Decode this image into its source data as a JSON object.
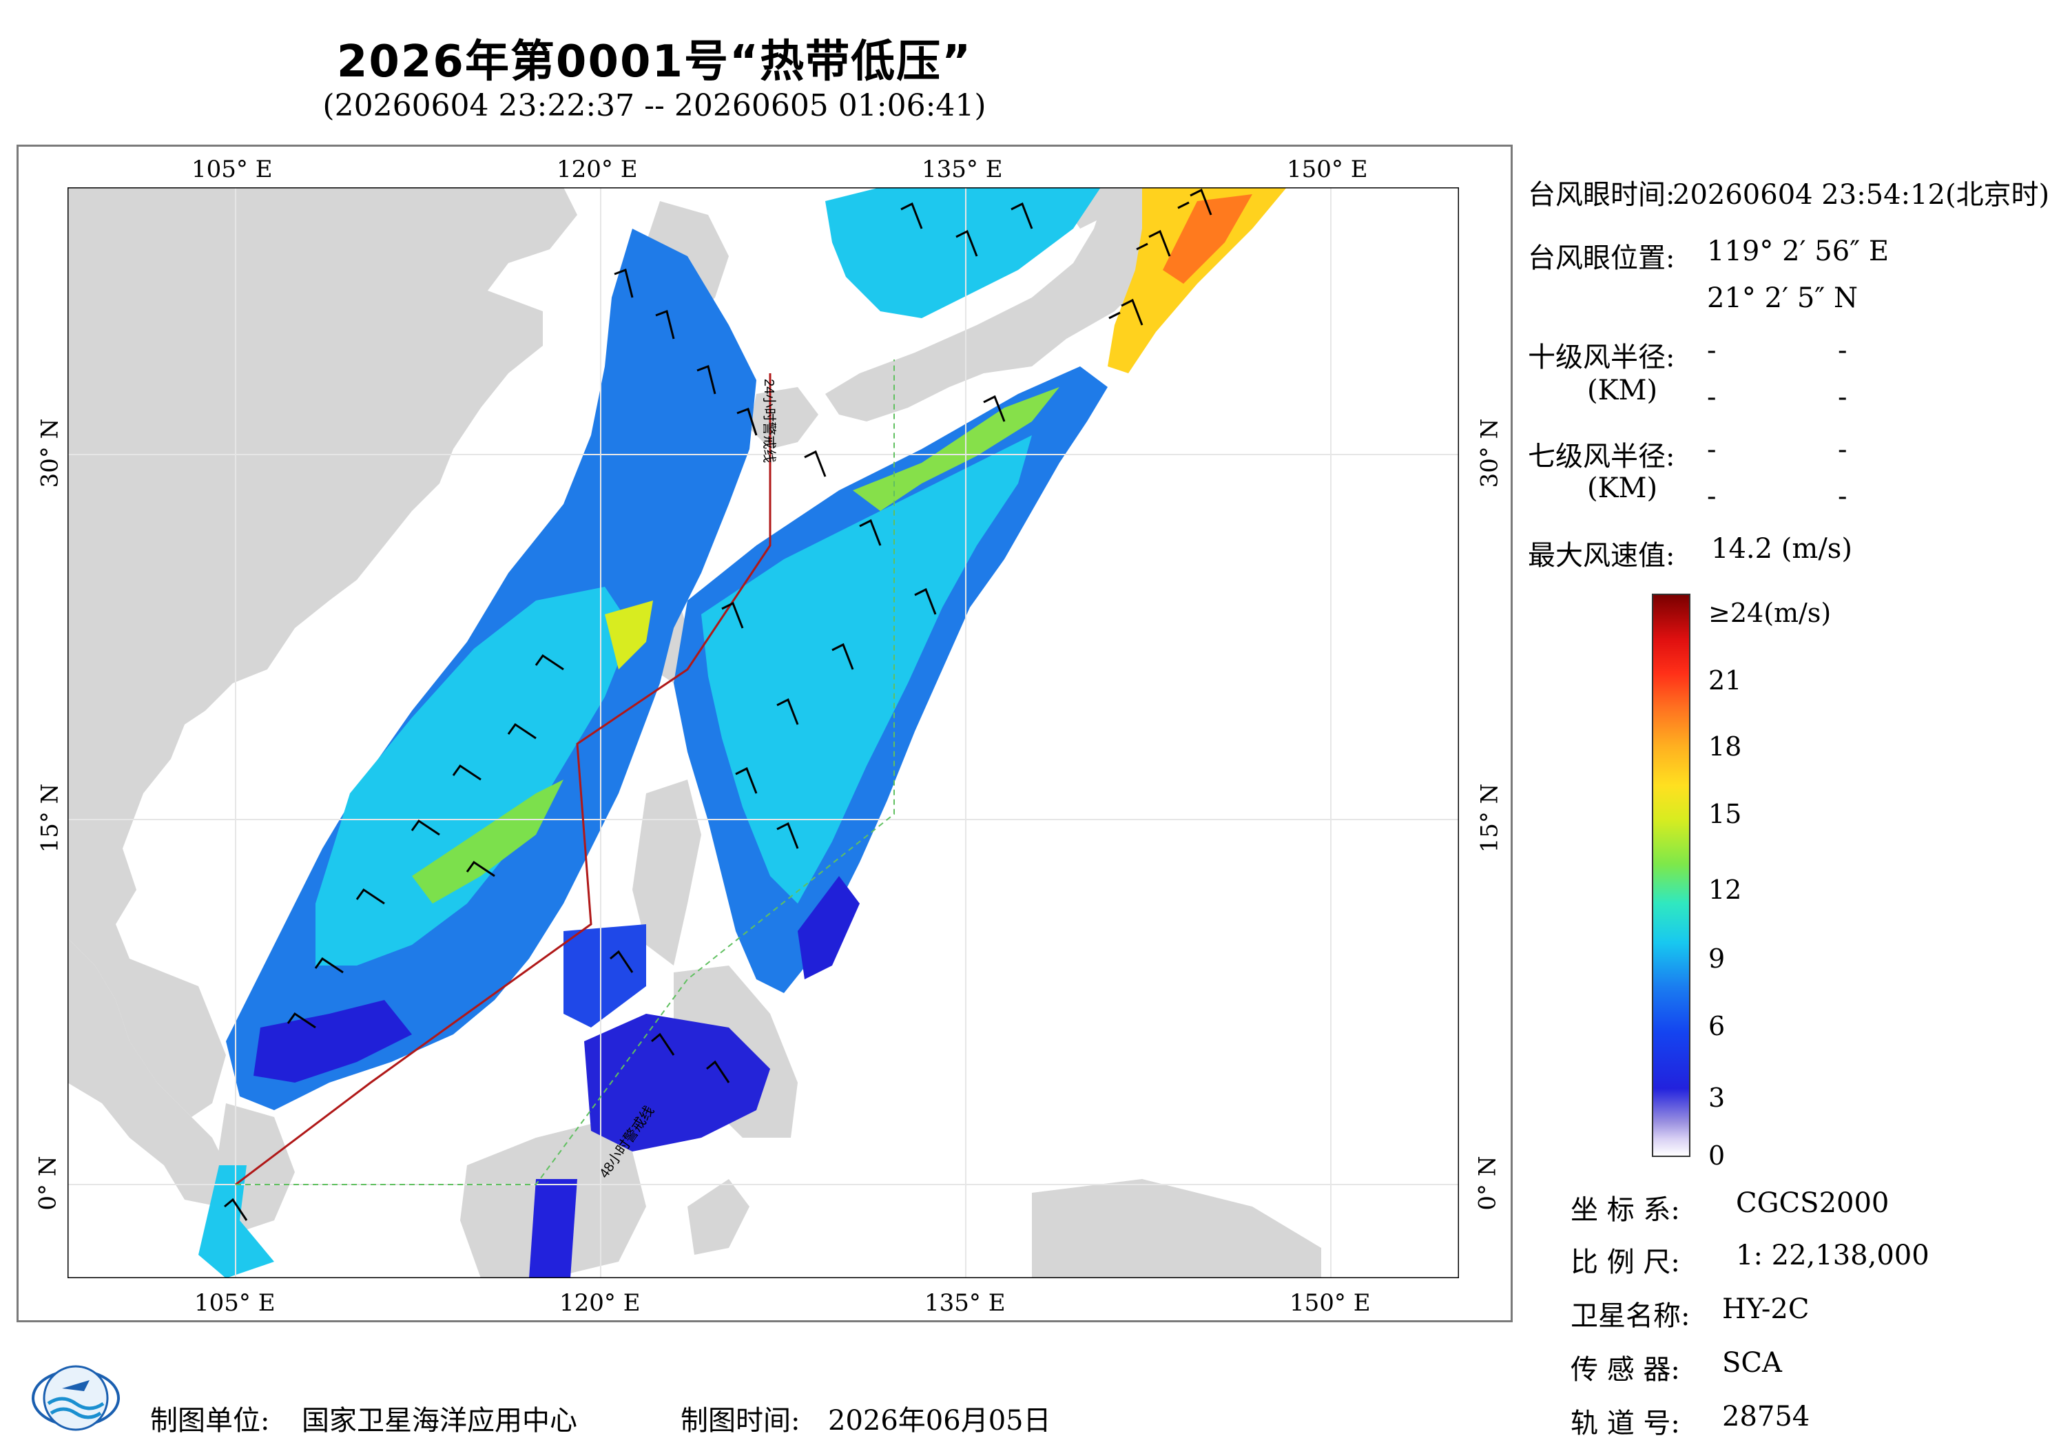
{
  "header": {
    "title": "2026年第0001号“热带低压”",
    "subtitle": "(20260604 23:22:37 -- 20260605 01:06:41)"
  },
  "map": {
    "lon_ticks": [
      "105° E",
      "120° E",
      "135° E",
      "150° E"
    ],
    "lat_ticks": [
      "30° N",
      "15° N",
      "0° N"
    ],
    "track_label_24h": "24小时警戒线",
    "track_label_48h": "48小时警戒线",
    "land_color": "#d6d6d6",
    "sea_color": "#ffffff"
  },
  "info": {
    "eye_time_label": "台风眼时间:",
    "eye_time_value": "20260604 23:54:12(北京时)",
    "eye_pos_label": "台风眼位置:",
    "eye_lon": "119° 2′ 56″ E",
    "eye_lat": "21° 2′ 5″ N",
    "r10_label": "十级风半径:",
    "r7_label": "七级风半径:",
    "unit_km": "(KM)",
    "dash": "-",
    "max_wind_label": "最大风速值:",
    "max_wind_value": "14.2  (m/s)"
  },
  "colorbar": {
    "top_label": "≥24(m/s)",
    "labels": [
      "21",
      "18",
      "15",
      "12",
      "9",
      "6",
      "3",
      "0"
    ]
  },
  "meta": {
    "crs_label": "坐 标 系:",
    "crs_value": "CGCS2000",
    "scale_label": "比 例 尺:",
    "scale_value": "1: 22,138,000",
    "sat_label": "卫星名称:",
    "sat_value": "HY-2C",
    "sensor_label": "传 感 器:",
    "sensor_value": "SCA",
    "orbit_label": "轨 道 号:",
    "orbit_value": "28754"
  },
  "footer": {
    "maker_label": "制图单位:",
    "maker_value": "国家卫星海洋应用中心",
    "date_label": "制图时间:",
    "date_value": "2026年06月05日"
  }
}
